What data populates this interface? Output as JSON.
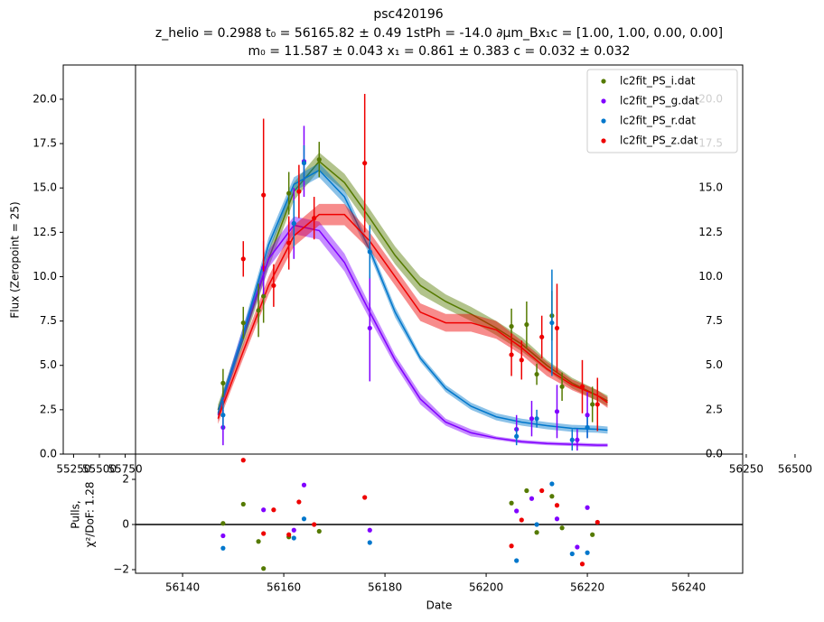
{
  "chart_data": {
    "type": "lightcurve",
    "title": [
      "psc420196",
      "z_helio = 0.2988  t₀ = 56165.82 ± 0.49  1stPh = -14.0  ∂μm_Bx₁c = [1.00,  1.00,  0.00,  0.00]",
      "m₀ = 11.587 ± 0.043  x₁ = 0.861 ± 0.383  c = 0.032 ± 0.032"
    ],
    "ylabel": "Flux (Zeropoint = 25)",
    "pull_ylabel": [
      "Pulls,",
      "χ²/DoF: 1.28"
    ],
    "xlabel": "Date",
    "xlim": [
      56130.7,
      56250.7
    ],
    "xticks": [
      56140,
      56160,
      56180,
      56200,
      56220,
      56240
    ],
    "ylim": [
      0,
      21.93
    ],
    "yticks": [
      {
        "value": 0,
        "label": "0.0"
      },
      {
        "value": 2.5,
        "label": "2.5"
      },
      {
        "value": 5,
        "label": "5.0"
      },
      {
        "value": 7.5,
        "label": "7.5"
      },
      {
        "value": 10,
        "label": "10.0"
      },
      {
        "value": 12.5,
        "label": "12.5"
      },
      {
        "value": 15,
        "label": "15.0"
      },
      {
        "value": 17.5,
        "label": "17.5"
      },
      {
        "value": 20,
        "label": "20.0"
      }
    ],
    "pull_ylim": [
      -2.16,
      3.12
    ],
    "pull_yticks": [
      {
        "value": -2,
        "label": "−2"
      },
      0,
      2
    ],
    "left_xlim": [
      55150,
      55850
    ],
    "left_xticks": [
      55250,
      55500,
      55750
    ],
    "right_xlim": [
      55991,
      56616
    ],
    "right_xticks": [
      56250,
      56500
    ],
    "legend": "upper right",
    "model_x": [
      56147,
      56152,
      56157,
      56162,
      56167,
      56172,
      56177,
      56182,
      56187,
      56192,
      56197,
      56202,
      56207,
      56212,
      56217,
      56222,
      56224
    ],
    "series": [
      {
        "name": "lc2fit_PS_i.dat",
        "color": "#557a00",
        "x": [
          56148,
          56152,
          56155,
          56156,
          56161,
          56167,
          56205,
          56208,
          56210,
          56213,
          56215,
          56221
        ],
        "values": [
          4.0,
          7.4,
          8.1,
          8.9,
          14.7,
          16.6,
          7.2,
          7.3,
          4.5,
          7.8,
          3.8,
          2.8
        ],
        "errors": [
          0.8,
          0.9,
          1.5,
          1.5,
          1.2,
          1.0,
          1.0,
          1.3,
          0.6,
          1.4,
          0.8,
          1.0
        ],
        "pulls": [
          0.05,
          0.9,
          -0.75,
          -1.95,
          -0.55,
          -0.3,
          0.95,
          1.5,
          -0.35,
          1.25,
          -0.15,
          -0.45
        ],
        "model": [
          2.5,
          6.5,
          11,
          14.8,
          16.5,
          15.3,
          13.3,
          11.2,
          9.5,
          8.6,
          7.9,
          7.1,
          6.2,
          5.0,
          4.0,
          3.3,
          3.0
        ],
        "band": [
          0.3,
          0.4,
          0.5,
          0.5,
          0.5,
          0.5,
          0.5,
          0.5,
          0.5,
          0.4,
          0.4,
          0.4,
          0.4,
          0.3,
          0.3,
          0.3,
          0.3
        ]
      },
      {
        "name": "lc2fit_PS_g.dat",
        "color": "#8000ff",
        "x": [
          56148,
          56156,
          56162,
          56164,
          56177,
          56206,
          56209,
          56214,
          56218,
          56220
        ],
        "values": [
          1.5,
          10.5,
          13.0,
          16.5,
          7.1,
          1.4,
          2.0,
          2.4,
          0.8,
          2.2
        ],
        "errors": [
          1.0,
          1.5,
          2.0,
          2.0,
          3.0,
          0.8,
          1.0,
          1.5,
          0.6,
          1.3
        ],
        "pulls": [
          -0.5,
          0.65,
          -0.25,
          1.75,
          -0.25,
          0.6,
          1.15,
          0.25,
          -1.0,
          0.75
        ],
        "model": [
          2.2,
          6.8,
          11.0,
          12.9,
          12.6,
          10.8,
          8.0,
          5.3,
          3.1,
          1.8,
          1.2,
          0.9,
          0.7,
          0.6,
          0.55,
          0.5,
          0.5
        ],
        "band": [
          0.3,
          0.4,
          0.5,
          0.5,
          0.5,
          0.5,
          0.4,
          0.3,
          0.3,
          0.2,
          0.2,
          0.1,
          0.1,
          0.1,
          0.1,
          0.1,
          0.1
        ]
      },
      {
        "name": "lc2fit_PS_r.dat",
        "color": "#0077cc",
        "x": [
          56148,
          56162,
          56164,
          56177,
          56206,
          56210,
          56213,
          56217,
          56220
        ],
        "values": [
          2.2,
          13.0,
          16.4,
          11.4,
          1.0,
          2.0,
          7.4,
          0.8,
          1.5
        ],
        "errors": [
          0.8,
          1.3,
          1.0,
          1.5,
          0.5,
          0.5,
          3.0,
          0.6,
          0.6
        ],
        "pulls": [
          -1.05,
          -0.6,
          0.25,
          -0.8,
          -1.6,
          0,
          1.8,
          -1.3,
          -1.25
        ],
        "model": [
          2.3,
          6.8,
          11.8,
          15.2,
          16.0,
          14.5,
          11.5,
          8.0,
          5.4,
          3.7,
          2.7,
          2.1,
          1.8,
          1.6,
          1.45,
          1.4,
          1.35
        ],
        "band": [
          0.3,
          0.4,
          0.4,
          0.4,
          0.4,
          0.4,
          0.3,
          0.3,
          0.2,
          0.2,
          0.2,
          0.2,
          0.2,
          0.2,
          0.2,
          0.2,
          0.2
        ]
      },
      {
        "name": "lc2fit_PS_z.dat",
        "color": "#ee0000",
        "x": [
          56152,
          56156,
          56158,
          56161,
          56163,
          56166,
          56176,
          56205,
          56207,
          56211,
          56214,
          56219,
          56222
        ],
        "values": [
          11.0,
          14.6,
          9.5,
          11.9,
          14.8,
          13.3,
          16.4,
          5.6,
          5.3,
          6.6,
          7.1,
          3.8,
          2.8
        ],
        "errors": [
          1.0,
          4.3,
          1.2,
          1.5,
          1.5,
          1.2,
          3.9,
          1.2,
          1.1,
          1.2,
          2.5,
          1.5,
          1.5
        ],
        "pulls": [
          2.85,
          -0.4,
          0.65,
          -0.45,
          1.0,
          0.0,
          1.2,
          -0.95,
          0.2,
          1.5,
          0.85,
          -1.75,
          0.1
        ],
        "model": [
          2.0,
          5.8,
          9.5,
          12.3,
          13.5,
          13.5,
          12.0,
          10.0,
          8.0,
          7.4,
          7.4,
          7.0,
          6.0,
          4.8,
          3.9,
          3.3,
          2.9
        ],
        "band": [
          0.3,
          0.4,
          0.5,
          0.6,
          0.6,
          0.6,
          0.5,
          0.5,
          0.5,
          0.5,
          0.5,
          0.5,
          0.4,
          0.4,
          0.3,
          0.3,
          0.3
        ]
      }
    ]
  }
}
